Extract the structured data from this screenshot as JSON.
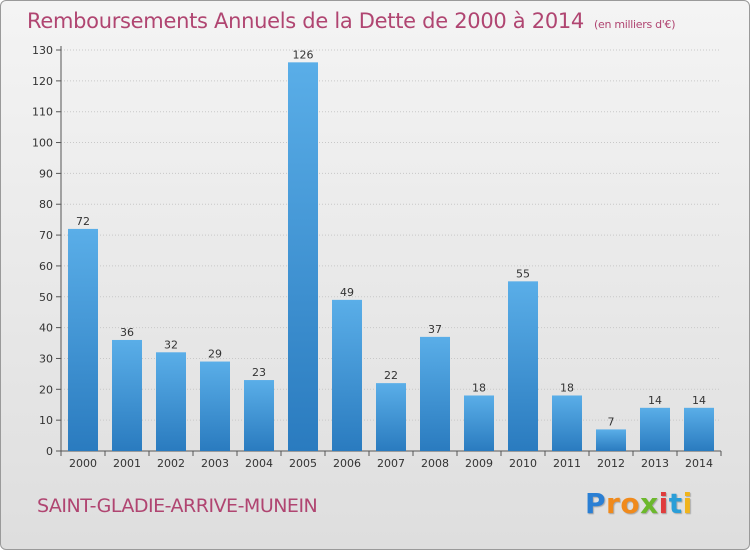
{
  "title": "Remboursements Annuels de la Dette de 2000 à 2014",
  "unit_note": "(en milliers d'€)",
  "commune": "SAINT-GLADIE-ARRIVE-MUNEIN",
  "logo": {
    "letters": [
      "P",
      "r",
      "o",
      "x",
      "i",
      "t",
      "i"
    ],
    "colors": [
      "#2a7fd4",
      "#f08a1c",
      "#f08a1c",
      "#6cb82c",
      "#e03c3c",
      "#2a9ed8",
      "#f0b41c"
    ]
  },
  "colors": {
    "bar_top": "#5aaee8",
    "bar_bottom": "#2a7bbf",
    "accent": "#b04571"
  },
  "chart_data": {
    "type": "bar",
    "categories": [
      "2000",
      "2001",
      "2002",
      "2003",
      "2004",
      "2005",
      "2006",
      "2007",
      "2008",
      "2009",
      "2010",
      "2011",
      "2012",
      "2013",
      "2014"
    ],
    "values": [
      72,
      36,
      32,
      29,
      23,
      126,
      49,
      22,
      37,
      18,
      55,
      18,
      7,
      14,
      14
    ],
    "data_labels": [
      "72",
      "36",
      "32",
      "29",
      "23",
      "126",
      "49",
      "22",
      "37",
      "18",
      "55",
      "18",
      "7",
      "14",
      "14"
    ],
    "ylim": [
      0,
      130
    ],
    "yticks": [
      0,
      10,
      20,
      30,
      40,
      50,
      60,
      70,
      80,
      90,
      100,
      110,
      120,
      130
    ],
    "grid": true
  }
}
